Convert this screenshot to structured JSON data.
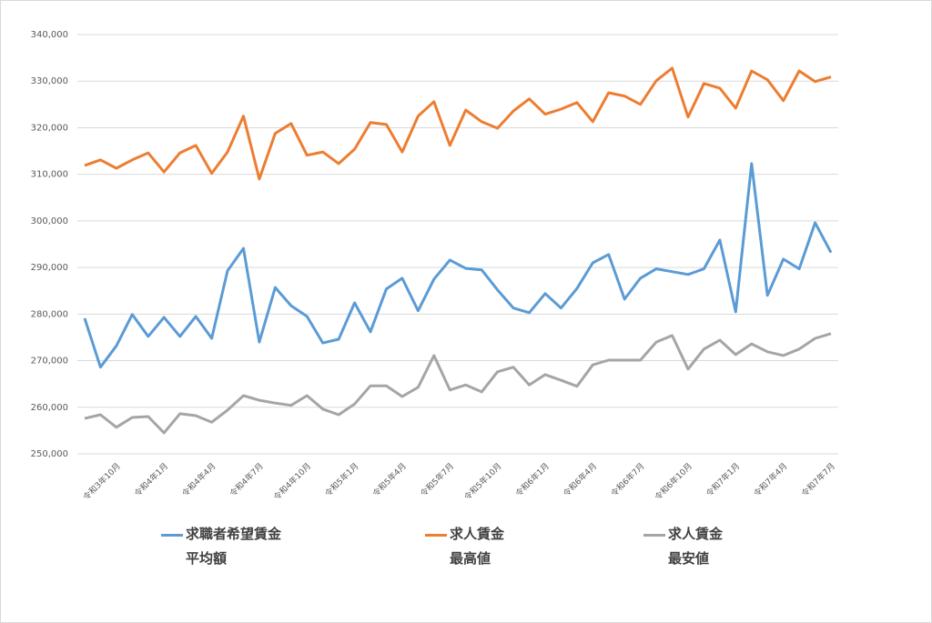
{
  "chart_data": {
    "type": "line",
    "categories": [
      null,
      null,
      "令和3年10月",
      null,
      null,
      "令和4年1月",
      null,
      null,
      "令和4年4月",
      null,
      null,
      "令和4年7月",
      null,
      null,
      "令和4年10月",
      null,
      null,
      "令和5年1月",
      null,
      null,
      "令和5年4月",
      null,
      null,
      "令和5年7月",
      null,
      null,
      "令和5年10月",
      null,
      null,
      "令和6年1月",
      null,
      null,
      "令和6年4月",
      null,
      null,
      "令和6年7月",
      null,
      null,
      "令和6年10月",
      null,
      null,
      "令和7年1月",
      null,
      null,
      "令和7年4月",
      null,
      null,
      "令和7年7月"
    ],
    "series": [
      {
        "name": "求職者希望賃金\n平均額",
        "color": "#5b9bd5",
        "values": [
          279100,
          268600,
          273200,
          279900,
          275200,
          279300,
          275200,
          279500,
          274800,
          289300,
          294100,
          274000,
          285700,
          281800,
          279500,
          273800,
          274600,
          282400,
          276200,
          285400,
          287700,
          280700,
          287500,
          291600,
          289800,
          289500,
          285200,
          281300,
          280300,
          284400,
          281300,
          285500,
          291000,
          292800,
          283200,
          287700,
          289700,
          289100,
          288500,
          289700,
          295900,
          280500,
          312300,
          284000,
          291800,
          289700,
          299600,
          293200
        ]
      },
      {
        "name": "求人賃金\n最高値",
        "color": "#ed7d31",
        "values": [
          311900,
          313100,
          311300,
          313100,
          314600,
          310500,
          314600,
          316200,
          310200,
          314800,
          322500,
          309000,
          318800,
          320900,
          314100,
          314800,
          312300,
          315400,
          321100,
          320700,
          314800,
          322500,
          325600,
          316200,
          323800,
          321300,
          319900,
          323600,
          326200,
          322900,
          324000,
          325400,
          321300,
          327500,
          326800,
          325000,
          330100,
          332800,
          322300,
          329500,
          328500,
          324200,
          332200,
          330300,
          325800,
          332200,
          329900,
          330900
        ]
      },
      {
        "name": "求人賃金\n最安値",
        "color": "#a5a5a5",
        "values": [
          257600,
          258400,
          255700,
          257800,
          258000,
          254500,
          258600,
          258200,
          256800,
          259400,
          262500,
          261500,
          260900,
          260400,
          262500,
          259600,
          258400,
          260700,
          264600,
          264600,
          262300,
          264300,
          271100,
          263700,
          264800,
          263300,
          267600,
          268600,
          264800,
          267000,
          265800,
          264500,
          269100,
          270100,
          270100,
          270100,
          274000,
          275400,
          268200,
          272500,
          274400,
          271300,
          273600,
          271900,
          271100,
          272500,
          274800,
          275800
        ]
      }
    ],
    "ylim": [
      250000,
      340000
    ],
    "yticks": [
      {
        "value": 250000,
        "label": "250,000"
      },
      {
        "value": 260000,
        "label": "260,000"
      },
      {
        "value": 270000,
        "label": "270,000"
      },
      {
        "value": 280000,
        "label": "280,000"
      },
      {
        "value": 290000,
        "label": "290,000"
      },
      {
        "value": 300000,
        "label": "300,000"
      },
      {
        "value": 310000,
        "label": "310,000"
      },
      {
        "value": 320000,
        "label": "320,000"
      },
      {
        "value": 330000,
        "label": "330,000"
      },
      {
        "value": 340000,
        "label": "340,000"
      }
    ],
    "grid": true,
    "legend": "bottom"
  }
}
